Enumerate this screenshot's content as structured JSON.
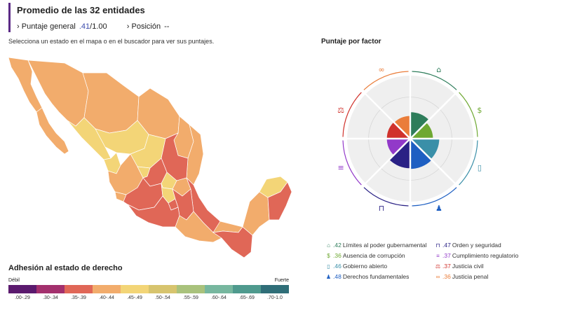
{
  "header": {
    "title": "Promedio de las 32 entidades",
    "overall_label": "Puntaje general",
    "overall_value": ".41",
    "overall_max": "/1.00",
    "position_label": "Posición",
    "position_value": "--",
    "chevron": "›"
  },
  "instruction": "Selecciona un estado en el mapa o en el buscador para ver sus puntajes.",
  "legend": {
    "title": "Adhesión al estado de derecho",
    "weak": "Débil",
    "strong": "Fuerte",
    "bins": [
      {
        "label": ".00-.29",
        "color": "#5b1a6e"
      },
      {
        "label": ".30-.34",
        "color": "#a3306d"
      },
      {
        "label": ".35-.39",
        "color": "#e06757"
      },
      {
        "label": ".40-.44",
        "color": "#f2ac6c"
      },
      {
        "label": ".45-.49",
        "color": "#f3d577"
      },
      {
        "label": ".50-.54",
        "color": "#d7c46e"
      },
      {
        "label": ".55-.59",
        "color": "#a9c27c"
      },
      {
        "label": ".60-.64",
        "color": "#77b79f"
      },
      {
        "label": ".65-.69",
        "color": "#4f9a8e"
      },
      {
        "label": ".70-1.0",
        "color": "#2f6e78"
      }
    ]
  },
  "factor_title": "Puntaje por factor",
  "chart_data": {
    "type": "radar",
    "title": "Puntaje por factor",
    "max": 1,
    "factors": [
      {
        "name": "Límites al poder gubernamental",
        "value": 0.42,
        "value_label": ".42",
        "color": "#2e7d5b",
        "icon": "government-building-icon",
        "glyph": "⌂"
      },
      {
        "name": "Ausencia de corrupción",
        "value": 0.36,
        "value_label": ".36",
        "color": "#6ea832",
        "icon": "money-bag-icon",
        "glyph": "$"
      },
      {
        "name": "Gobierno abierto",
        "value": 0.46,
        "value_label": ".46",
        "color": "#3a8fa8",
        "icon": "open-door-icon",
        "glyph": "▯"
      },
      {
        "name": "Derechos fundamentales",
        "value": 0.48,
        "value_label": ".48",
        "color": "#1e5fc2",
        "icon": "people-icon",
        "glyph": "♟"
      },
      {
        "name": "Orden y seguridad",
        "value": 0.47,
        "value_label": ".47",
        "color": "#2a2185",
        "icon": "padlock-icon",
        "glyph": "⊓"
      },
      {
        "name": "Cumplimiento regulatorio",
        "value": 0.37,
        "value_label": ".37",
        "color": "#9239c9",
        "icon": "clipboard-icon",
        "glyph": "≡"
      },
      {
        "name": "Justicia civil",
        "value": 0.37,
        "value_label": ".37",
        "color": "#d0322c",
        "icon": "scales-icon",
        "glyph": "⚖"
      },
      {
        "name": "Justicia penal",
        "value": 0.36,
        "value_label": ".36",
        "color": "#ea7d3a",
        "icon": "handcuffs-icon",
        "glyph": "∞"
      }
    ]
  }
}
